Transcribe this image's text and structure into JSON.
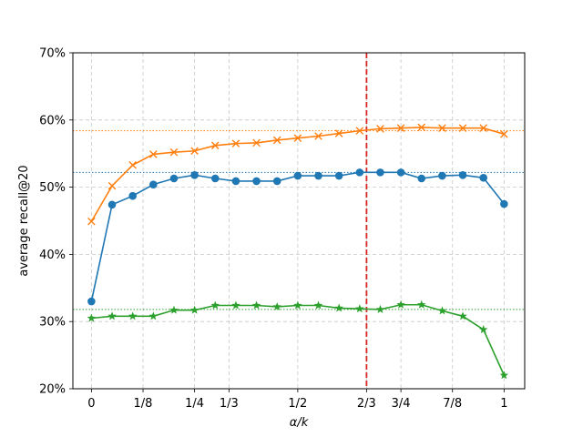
{
  "chart_data": {
    "type": "line",
    "xlabel": "α/k",
    "ylabel": "average recall@20",
    "xlim": [
      -0.045,
      1.05
    ],
    "ylim": [
      20,
      70
    ],
    "grid": true,
    "x_ticks": [
      {
        "value": 0,
        "label": "0"
      },
      {
        "value": 0.125,
        "label": "1/8"
      },
      {
        "value": 0.25,
        "label": "1/4"
      },
      {
        "value": 0.3333,
        "label": "1/3"
      },
      {
        "value": 0.5,
        "label": "1/2"
      },
      {
        "value": 0.6667,
        "label": "2/3"
      },
      {
        "value": 0.75,
        "label": "3/4"
      },
      {
        "value": 0.875,
        "label": "7/8"
      },
      {
        "value": 1,
        "label": "1"
      }
    ],
    "y_ticks": [
      {
        "value": 20,
        "label": "20%"
      },
      {
        "value": 30,
        "label": "30%"
      },
      {
        "value": 40,
        "label": "40%"
      },
      {
        "value": 50,
        "label": "50%"
      },
      {
        "value": 60,
        "label": "60%"
      },
      {
        "value": 70,
        "label": "70%"
      }
    ],
    "x": [
      0,
      0.05,
      0.1,
      0.15,
      0.2,
      0.25,
      0.3,
      0.35,
      0.4,
      0.45,
      0.5,
      0.55,
      0.6,
      0.65,
      0.7,
      0.75,
      0.8,
      0.85,
      0.9,
      0.95,
      1.0
    ],
    "series": [
      {
        "color": "#1f77b4",
        "marker": "circle",
        "values": [
          33.0,
          47.4,
          48.7,
          50.4,
          51.3,
          51.8,
          51.3,
          50.9,
          50.9,
          50.9,
          51.7,
          51.7,
          51.7,
          52.2,
          52.2,
          52.2,
          51.3,
          51.7,
          51.8,
          51.4,
          47.5
        ],
        "reference": 52.2
      },
      {
        "color": "#ff7f0e",
        "marker": "x",
        "values": [
          44.9,
          50.2,
          53.3,
          54.9,
          55.2,
          55.4,
          56.2,
          56.5,
          56.6,
          57.0,
          57.3,
          57.6,
          58.0,
          58.4,
          58.7,
          58.8,
          58.9,
          58.8,
          58.8,
          58.8,
          57.9
        ],
        "reference": 58.4
      },
      {
        "color": "#2ca02c",
        "marker": "star",
        "values": [
          30.5,
          30.8,
          30.8,
          30.8,
          31.7,
          31.7,
          32.4,
          32.4,
          32.4,
          32.2,
          32.4,
          32.4,
          32.0,
          31.9,
          31.8,
          32.5,
          32.5,
          31.6,
          30.8,
          28.8,
          22.0
        ],
        "reference": 31.8
      }
    ],
    "vline": {
      "x": 0.6667,
      "color": "#d62728"
    }
  }
}
